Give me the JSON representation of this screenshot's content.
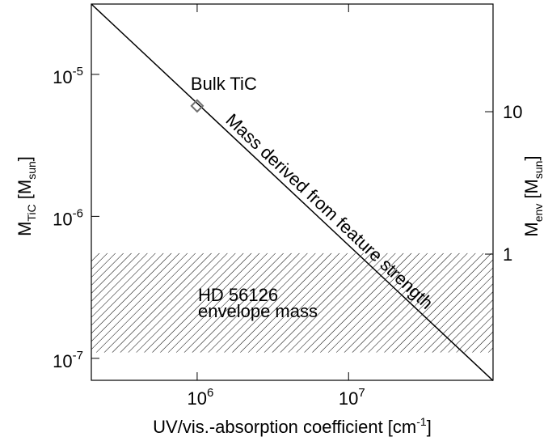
{
  "chart_data": {
    "type": "line",
    "xlog": true,
    "ylog": true,
    "y2log": true,
    "xlim": [
      200000,
      90000000
    ],
    "ylim": [
      7e-08,
      3.13e-05
    ],
    "y2lim": [
      0.13,
      57
    ],
    "xticks": [
      {
        "value": 1000000,
        "label": {
          "base": "10",
          "exp": "6"
        }
      },
      {
        "value": 10000000,
        "label": {
          "base": "10",
          "exp": "7"
        }
      }
    ],
    "yticks": [
      {
        "value": 1e-07,
        "label": {
          "base": "10",
          "exp": "-7"
        }
      },
      {
        "value": 1e-06,
        "label": {
          "base": "10",
          "exp": "-6"
        }
      },
      {
        "value": 1e-05,
        "label": {
          "base": "10",
          "exp": "-5"
        }
      }
    ],
    "y2ticks": [
      1,
      10
    ],
    "xlabel": {
      "main": "UV/vis.-absorption coefficient [cm",
      "sup": "-1",
      "end": "]"
    },
    "ylabel": {
      "main": "M",
      "sub": "TiC",
      "mid": " [M",
      "sub2": "sun",
      "end": "]"
    },
    "y2label": {
      "main": "M",
      "sub": "env",
      "mid": " [M",
      "sub2": "sun",
      "end": "]"
    },
    "series": [
      {
        "name": "Mass derived from feature strength",
        "color": "#000000",
        "x": [
          200000,
          90000000
        ],
        "values": [
          3.13e-05,
          6.96e-08
        ]
      }
    ],
    "points": [
      {
        "name": "Bulk TiC",
        "color": "#707070",
        "x": 1000000,
        "y": 6e-06
      }
    ],
    "band": {
      "label": [
        "HD 56126",
        "envelope mass"
      ],
      "ylim": [
        1.1e-07,
        5.5e-07
      ]
    }
  }
}
